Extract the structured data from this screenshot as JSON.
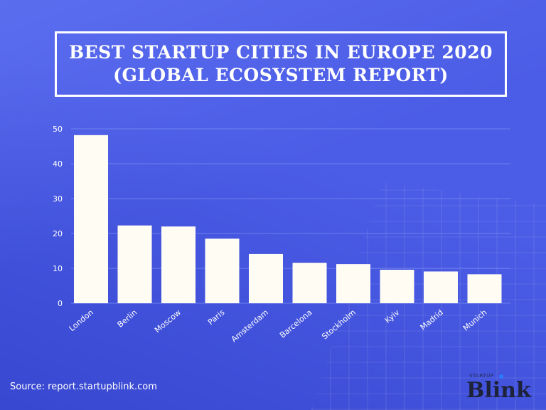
{
  "header": {
    "title_line1": "BEST STARTUP CITIES IN EUROPE 2020",
    "title_line2": "(GLOBAL ECOSYSTEM REPORT)"
  },
  "footer": {
    "source": "Source: report.startupblink.com"
  },
  "logo": {
    "small": "STARTUP",
    "main": "Blink"
  },
  "colors": {
    "background": "#4b5ce6",
    "bar": "#fffdf3",
    "text": "#ffffff",
    "gridline": "#6f80f0"
  },
  "chart_data": {
    "type": "bar",
    "title": "BEST STARTUP CITIES IN EUROPE 2020 (GLOBAL ECOSYSTEM REPORT)",
    "categories": [
      "London",
      "Berlin",
      "Moscow",
      "Paris",
      "Amsterdam",
      "Barcelona",
      "Stockholm",
      "Kyiv",
      "Madrid",
      "Munich"
    ],
    "values": [
      48.2,
      22.3,
      22.0,
      18.5,
      14.1,
      11.6,
      11.2,
      9.6,
      9.1,
      8.3
    ],
    "ylim": [
      0,
      50
    ],
    "yticks": [
      0,
      10,
      20,
      30,
      40,
      50
    ],
    "grid": true,
    "legend": "none"
  }
}
